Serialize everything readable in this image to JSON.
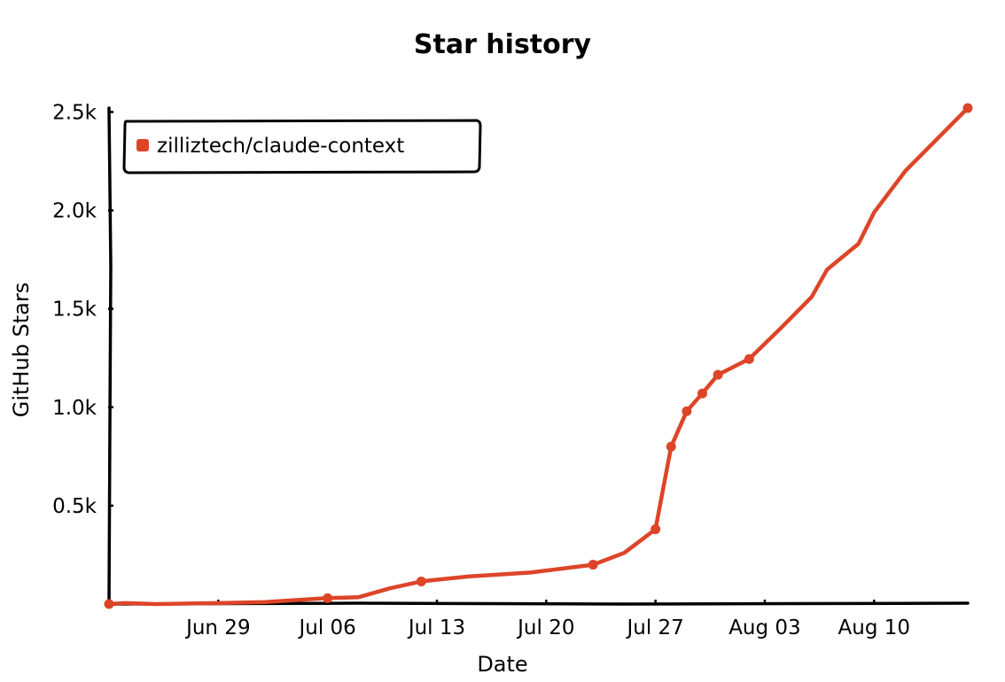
{
  "chart_data": {
    "type": "line",
    "title": "Star history",
    "xlabel": "Date",
    "ylabel": "GitHub Stars",
    "x_tick_labels": [
      "Jun 29",
      "Jul 06",
      "Jul 13",
      "Jul 20",
      "Jul 27",
      "Aug 03",
      "Aug 10"
    ],
    "y_tick_labels": [
      "0.5k",
      "1.0k",
      "1.5k",
      "2.0k",
      "2.5k"
    ],
    "y_ticks": [
      500,
      1000,
      1500,
      2000,
      2500
    ],
    "ylim": [
      0,
      2520
    ],
    "xlim": [
      "2025-06-22",
      "2025-08-16"
    ],
    "x_ticks": [
      "2025-06-29",
      "2025-07-06",
      "2025-07-13",
      "2025-07-20",
      "2025-07-27",
      "2025-08-03",
      "2025-08-10"
    ],
    "legend_position": "top-left",
    "grid": false,
    "series": [
      {
        "name": "zilliztech/claude-context",
        "color": "#dd4528",
        "points": [
          {
            "x": "2025-06-22",
            "y": 0
          },
          {
            "x": "2025-07-06",
            "y": 30
          },
          {
            "x": "2025-07-12",
            "y": 115
          },
          {
            "x": "2025-07-23",
            "y": 200
          },
          {
            "x": "2025-07-27",
            "y": 380
          },
          {
            "x": "2025-07-28",
            "y": 800
          },
          {
            "x": "2025-07-29",
            "y": 980
          },
          {
            "x": "2025-07-30",
            "y": 1070
          },
          {
            "x": "2025-07-31",
            "y": 1165
          },
          {
            "x": "2025-08-02",
            "y": 1245
          },
          {
            "x": "2025-08-16",
            "y": 2520
          }
        ],
        "line": [
          {
            "x": "2025-06-22",
            "y": 0
          },
          {
            "x": "2025-06-23",
            "y": 5
          },
          {
            "x": "2025-06-25",
            "y": 0
          },
          {
            "x": "2025-06-29",
            "y": 5
          },
          {
            "x": "2025-07-02",
            "y": 10
          },
          {
            "x": "2025-07-06",
            "y": 30
          },
          {
            "x": "2025-07-08",
            "y": 35
          },
          {
            "x": "2025-07-10",
            "y": 80
          },
          {
            "x": "2025-07-12",
            "y": 115
          },
          {
            "x": "2025-07-15",
            "y": 140
          },
          {
            "x": "2025-07-19",
            "y": 160
          },
          {
            "x": "2025-07-23",
            "y": 200
          },
          {
            "x": "2025-07-25",
            "y": 260
          },
          {
            "x": "2025-07-27",
            "y": 380
          },
          {
            "x": "2025-07-28",
            "y": 800
          },
          {
            "x": "2025-07-29",
            "y": 980
          },
          {
            "x": "2025-07-30",
            "y": 1070
          },
          {
            "x": "2025-07-31",
            "y": 1165
          },
          {
            "x": "2025-08-02",
            "y": 1245
          },
          {
            "x": "2025-08-04",
            "y": 1400
          },
          {
            "x": "2025-08-06",
            "y": 1560
          },
          {
            "x": "2025-08-07",
            "y": 1700
          },
          {
            "x": "2025-08-09",
            "y": 1830
          },
          {
            "x": "2025-08-10",
            "y": 1990
          },
          {
            "x": "2025-08-12",
            "y": 2200
          },
          {
            "x": "2025-08-16",
            "y": 2520
          }
        ]
      }
    ]
  }
}
